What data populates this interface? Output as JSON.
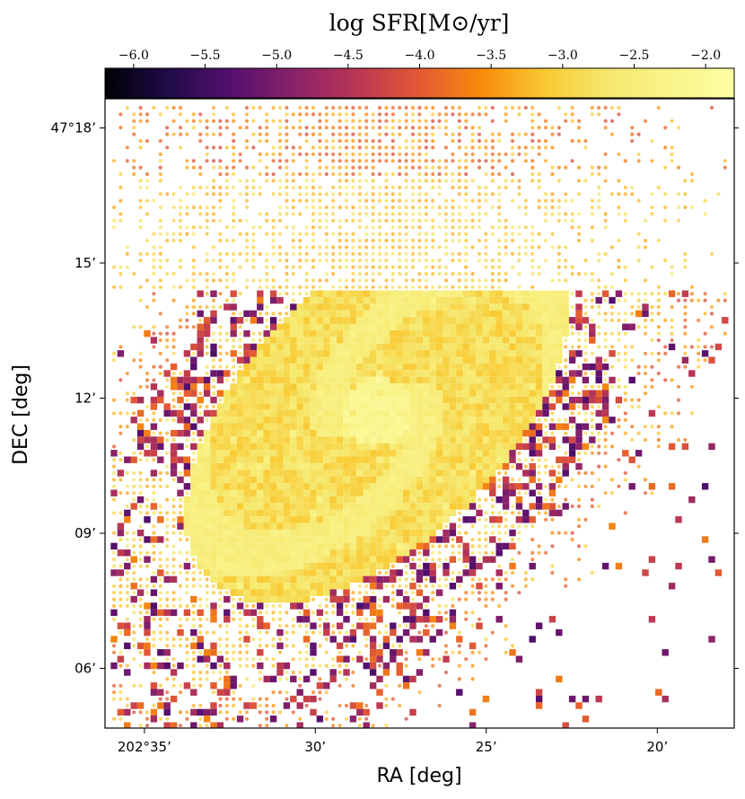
{
  "chart_data": {
    "type": "heatmap",
    "title": "",
    "xlabel": "RA [deg]",
    "ylabel": "DEC [deg]",
    "x_ticks": [
      "202°35’",
      "30’",
      "25’",
      "20’"
    ],
    "x_tick_values_deg": [
      202.5833,
      202.5,
      202.4167,
      202.3333
    ],
    "xlim_deg": [
      202.6025,
      202.2958
    ],
    "y_ticks": [
      "47°18’",
      "15’",
      "12’",
      "09’",
      "06’"
    ],
    "y_tick_values_deg": [
      47.3,
      47.25,
      47.2,
      47.15,
      47.1
    ],
    "ylim_deg": [
      47.0779,
      47.3108
    ],
    "colorbar": {
      "label": "log SFR[M⊙/yr]",
      "cmap": "inferno",
      "range": [
        -6.2,
        -1.8
      ],
      "ticks": [
        -6.0,
        -5.5,
        -5.0,
        -4.5,
        -4.0,
        -3.5,
        -3.0,
        -2.5,
        -2.0
      ],
      "tick_labels": [
        "−6.0",
        "−5.5",
        "−5.0",
        "−4.5",
        "−4.0",
        "−3.5",
        "−3.0",
        "−2.5",
        "−2.0"
      ],
      "position": "top"
    },
    "center_deg": {
      "ra": 202.4698,
      "dec": 47.1952
    },
    "peak_log_sfr": -2.0,
    "regions": [
      {
        "name": "sparse outer field",
        "log_sfr_range": [
          -4.2,
          -2.9
        ]
      },
      {
        "name": "extended halo below y 47.2408",
        "log_sfr_range": [
          -3.4,
          -2.6
        ]
      },
      {
        "name": "disk bulk",
        "log_sfr_range": [
          -3.1,
          -2.6
        ]
      },
      {
        "name": "spiral arms",
        "log_sfr_range": [
          -2.6,
          -2.3
        ]
      },
      {
        "name": "core",
        "log_sfr_range": [
          -2.3,
          -2.0
        ]
      },
      {
        "name": "low-SFR outskirts",
        "log_sfr_range": [
          -5.4,
          -3.6
        ]
      }
    ],
    "grid": false,
    "legend": "none"
  }
}
